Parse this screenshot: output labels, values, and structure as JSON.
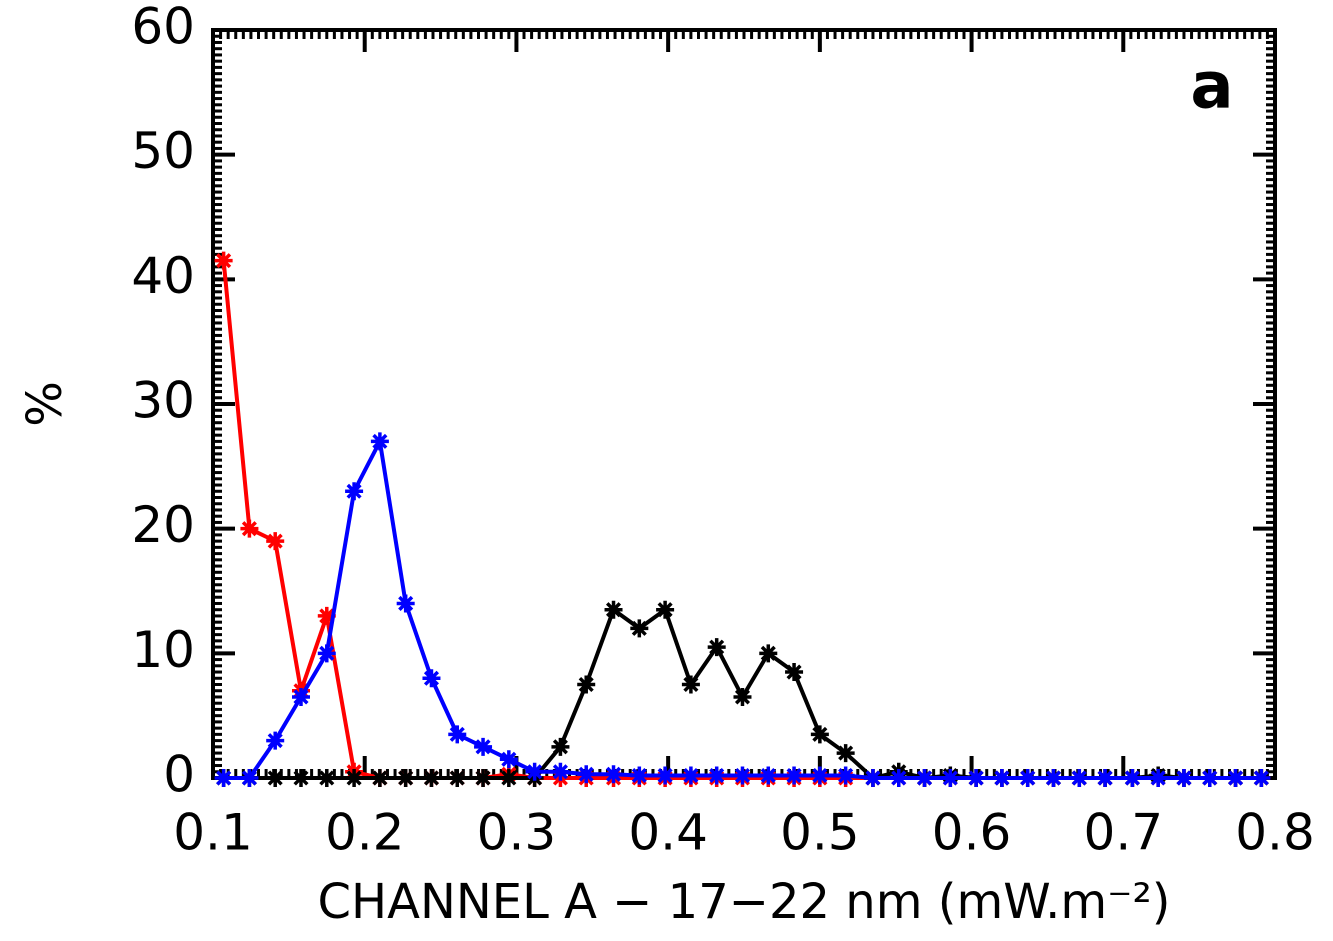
{
  "chart_data": {
    "type": "line",
    "annotation": "a",
    "xlabel": "CHANNEL A − 17−22 nm (mW.m⁻²)",
    "ylabel": "%",
    "x": [
      0.107,
      0.124,
      0.141,
      0.158,
      0.175,
      0.193,
      0.21,
      0.227,
      0.244,
      0.261,
      0.278,
      0.295,
      0.312,
      0.329,
      0.346,
      0.364,
      0.381,
      0.398,
      0.415,
      0.432,
      0.449,
      0.466,
      0.483,
      0.5,
      0.517,
      0.535,
      0.552,
      0.569,
      0.586,
      0.603,
      0.62,
      0.637,
      0.654,
      0.671,
      0.688,
      0.706,
      0.723,
      0.74,
      0.757,
      0.774,
      0.791
    ],
    "series": [
      {
        "color": "#ff0000",
        "values": [
          41.5,
          20,
          19,
          7,
          13,
          0.5,
          0,
          0,
          0,
          0,
          0,
          0.3,
          0,
          0,
          0,
          0,
          0,
          0,
          0,
          0,
          0,
          0,
          0,
          0,
          0,
          0,
          0,
          0,
          0,
          0,
          0,
          0,
          0,
          0,
          0,
          0,
          0,
          0,
          0,
          0,
          0
        ]
      },
      {
        "color": "#000000",
        "values": [
          0,
          0,
          0,
          0,
          0,
          0,
          0,
          0,
          0,
          0,
          0,
          0,
          0,
          2.5,
          7.5,
          13.5,
          12,
          13.5,
          7.5,
          10.5,
          6.5,
          10,
          8.5,
          3.5,
          2,
          0,
          0.5,
          0,
          0.2,
          0,
          0,
          0,
          0,
          0,
          0,
          0,
          0.2,
          0,
          0,
          0,
          0
        ]
      },
      {
        "color": "#0000ff",
        "values": [
          0,
          0,
          3,
          6.5,
          10,
          23,
          27,
          14,
          8,
          3.5,
          2.5,
          1.5,
          0.5,
          0.5,
          0.3,
          0.3,
          0.2,
          0.2,
          0.2,
          0.2,
          0.2,
          0.2,
          0.2,
          0.2,
          0.2,
          0,
          0,
          0,
          0,
          0,
          0,
          0,
          0,
          0,
          0,
          0,
          0,
          0,
          0,
          0,
          0
        ]
      }
    ],
    "xlim": [
      0.1,
      0.8
    ],
    "xticks": [
      0.1,
      0.2,
      0.3,
      0.4,
      0.5,
      0.6,
      0.7,
      0.8
    ],
    "ylim": [
      0,
      60
    ],
    "yticks": [
      0,
      10,
      20,
      30,
      40,
      50,
      60
    ]
  }
}
